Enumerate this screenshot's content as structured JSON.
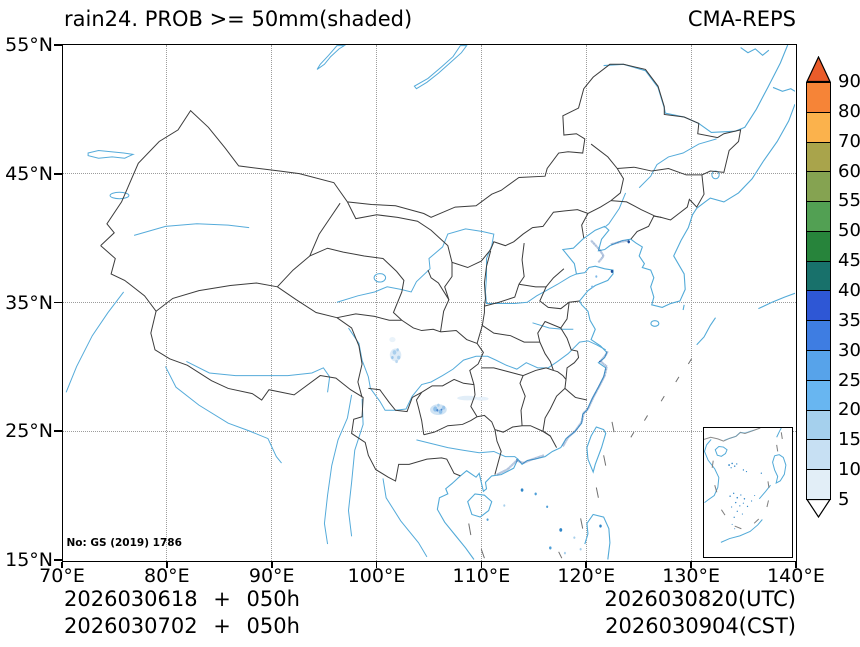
{
  "header": {
    "title": "rain24. PROB >= 50mm(shaded)",
    "model": "CMA-REPS"
  },
  "map": {
    "license_note": "No: GS (2019) 1786"
  },
  "axes": {
    "lat_labels": [
      "55°N",
      "45°N",
      "35°N",
      "25°N",
      "15°N"
    ],
    "lon_labels": [
      "70°E",
      "80°E",
      "90°E",
      "100°E",
      "110°E",
      "120°E",
      "130°E",
      "140°E"
    ]
  },
  "colorbar": {
    "tick_labels": [
      "90",
      "80",
      "70",
      "60",
      "55",
      "50",
      "45",
      "40",
      "35",
      "30",
      "25",
      "20",
      "15",
      "10",
      "5"
    ],
    "segment_colors_top_to_bottom": [
      "#f68437",
      "#fbb24c",
      "#a9a44b",
      "#85a351",
      "#52a053",
      "#27843b",
      "#18716b",
      "#2e57d5",
      "#3e7de2",
      "#57a3ea",
      "#68b6f1",
      "#a5d0ed",
      "#c7e0f3",
      "#e2eef7"
    ],
    "over_color": "#ea5c2a",
    "under_color": "#ffffff"
  },
  "footer": {
    "init_utc": "2026030618 + 050h",
    "init_cst": "2026030702 + 050h",
    "valid_utc": "2026030820(UTC)",
    "valid_cst": "2026030904(CST)"
  },
  "chart_data": {
    "type": "heatmap",
    "title": "rain24. PROB >= 50mm(shaded)",
    "model": "CMA-REPS",
    "lon_range": [
      70,
      140
    ],
    "lat_range": [
      15,
      55
    ],
    "probability_levels_percent": [
      5,
      10,
      15,
      20,
      25,
      30,
      35,
      40,
      45,
      50,
      55,
      60,
      70,
      80,
      90
    ],
    "shaded_areas_visible": [
      {
        "region": "western Sichuan",
        "approx_lon": 101.9,
        "approx_lat": 30.9,
        "approx_prob": "5-15"
      },
      {
        "region": "Guizhou / Chongqing",
        "approx_lon": 106.0,
        "approx_lat": 26.7,
        "approx_prob": "5-25"
      },
      {
        "region": "Zhejiang-Fujian-Guangdong coast speckles",
        "approx_lon": 120.5,
        "approx_lat": 27.0,
        "approx_prob": "5-20"
      },
      {
        "region": "South China Sea scattered spots",
        "approx_lon": 116.0,
        "approx_lat": 18.0,
        "approx_prob": "5-10"
      }
    ]
  }
}
